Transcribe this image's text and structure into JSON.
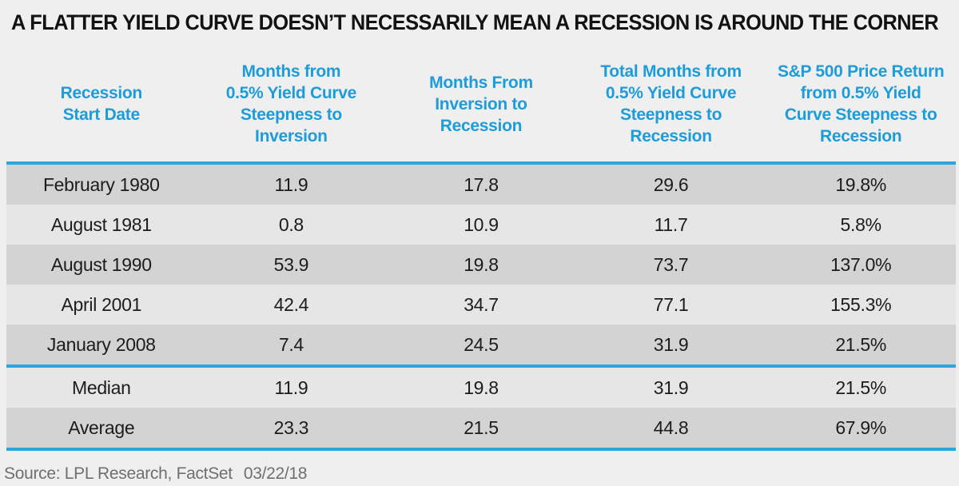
{
  "title": "A FLATTER YIELD CURVE DOESN’T NECESSARILY MEAN A RECESSION IS AROUND THE CORNER",
  "colors": {
    "accent_blue_text": "#1d9cd9",
    "accent_blue_rule": "#2ca6dc",
    "row_dark": "#d3d3d3",
    "row_light": "#e6e6e6",
    "background": "#efefef",
    "title_text": "#121212",
    "source_text_color": "#6f6f6f"
  },
  "chart_data": {
    "type": "table",
    "title": "A FLATTER YIELD CURVE DOESN’T NECESSARILY MEAN A RECESSION IS AROUND THE CORNER",
    "columns": [
      "Recession\nStart Date",
      "Months from\n0.5% Yield Curve\nSteepness to\nInversion",
      "Months From\nInversion to\nRecession",
      "Total Months from\n0.5% Yield Curve\nSteepness to\nRecession",
      "S&P 500 Price Return\nfrom 0.5% Yield\nCurve Steepness to\nRecession"
    ],
    "summary_start_index": 5,
    "rows": [
      {
        "label": "February 1980",
        "values": [
          "11.9",
          "17.8",
          "29.6",
          "19.8%"
        ]
      },
      {
        "label": "August 1981",
        "values": [
          "0.8",
          "10.9",
          "11.7",
          "5.8%"
        ]
      },
      {
        "label": "August 1990",
        "values": [
          "53.9",
          "19.8",
          "73.7",
          "137.0%"
        ]
      },
      {
        "label": "April 2001",
        "values": [
          "42.4",
          "34.7",
          "77.1",
          "155.3%"
        ]
      },
      {
        "label": "January 2008",
        "values": [
          "7.4",
          "24.5",
          "31.9",
          "21.5%"
        ]
      },
      {
        "label": "Median",
        "values": [
          "11.9",
          "19.8",
          "31.9",
          "21.5%"
        ]
      },
      {
        "label": "Average",
        "values": [
          "23.3",
          "21.5",
          "44.8",
          "67.9%"
        ]
      }
    ]
  },
  "source": {
    "text": "Source: LPL Research, FactSet",
    "date": "03/22/18"
  }
}
